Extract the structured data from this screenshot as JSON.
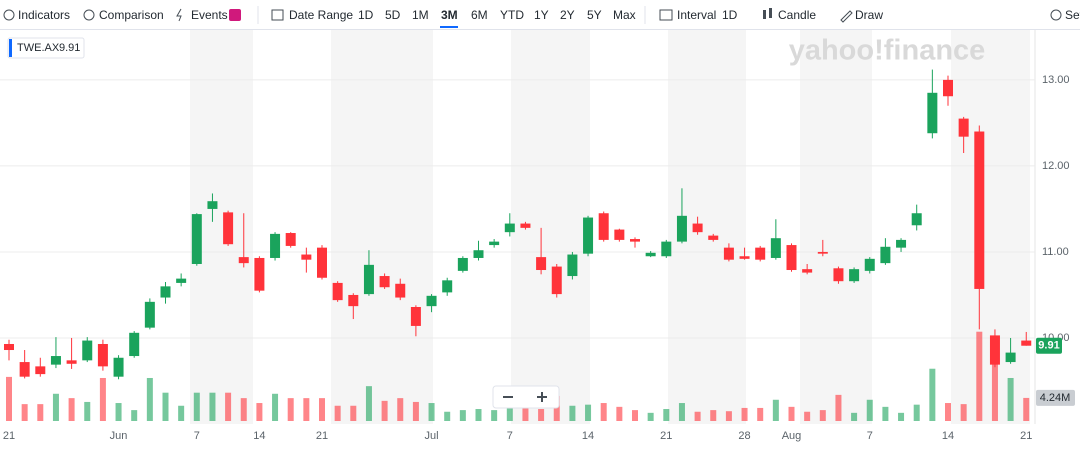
{
  "toolbar": {
    "tools": [
      "Indicators",
      "Comparison",
      "Events"
    ],
    "date_range": "Date Range",
    "ranges": [
      "1D",
      "5D",
      "1M",
      "3M",
      "6M",
      "YTD",
      "1Y",
      "2Y",
      "5Y",
      "Max"
    ],
    "selected_range": 3,
    "interval": "Interval",
    "interval_value": "1D",
    "chart_style": "Candle",
    "draw": "Draw",
    "settings": "Settings"
  },
  "watermark": "yahoo!finance",
  "chart_data": {
    "type": "candlestick",
    "categories": [
      "21",
      null,
      null,
      null,
      null,
      null,
      null,
      "Jun",
      null,
      null,
      null,
      null,
      "7",
      null,
      null,
      null,
      "14",
      null,
      null,
      null,
      "21",
      null,
      null,
      null,
      null,
      null,
      null,
      "Jul",
      null,
      null,
      null,
      null,
      "7",
      null,
      null,
      null,
      null,
      "14",
      null,
      null,
      null,
      null,
      "21",
      null,
      null,
      null,
      null,
      "28",
      null,
      null,
      "Aug",
      null,
      null,
      null,
      null,
      "7",
      null,
      null,
      null,
      null,
      "14",
      null,
      null,
      null,
      null,
      "21"
    ],
    "series": [
      {
        "name": "TWE.AX",
        "up_color": "#1aa35c",
        "down_color": "#ff333a",
        "open": [
          9.93,
          9.72,
          9.67,
          9.69,
          9.74,
          9.74,
          9.93,
          9.55,
          9.79,
          10.12,
          10.47,
          10.64,
          10.86,
          11.5,
          11.46,
          10.94,
          10.93,
          10.93,
          11.22,
          10.97,
          11.05,
          10.64,
          10.5,
          10.51,
          10.72,
          10.63,
          10.36,
          10.37,
          10.53,
          10.78,
          10.93,
          11.08,
          11.23,
          11.33,
          10.94,
          10.83,
          10.72,
          10.98,
          11.45,
          11.26,
          11.15,
          10.95,
          10.95,
          11.12,
          11.33,
          11.19,
          11.05,
          10.95,
          11.05,
          10.93,
          11.08,
          10.8,
          11.0,
          10.81,
          10.66,
          10.78,
          10.87,
          11.05,
          11.31,
          12.38,
          13.0,
          12.55,
          12.4,
          10.03,
          9.72,
          9.97
        ],
        "high": [
          9.98,
          9.86,
          9.77,
          10.01,
          10.0,
          10.01,
          9.98,
          9.8,
          10.08,
          10.46,
          10.65,
          10.75,
          11.45,
          11.68,
          11.48,
          11.45,
          10.95,
          11.23,
          11.23,
          11.05,
          11.08,
          10.66,
          10.52,
          11.02,
          10.75,
          10.69,
          10.38,
          10.51,
          10.7,
          10.95,
          11.13,
          11.15,
          11.45,
          11.35,
          11.28,
          10.86,
          11.0,
          11.42,
          11.47,
          11.27,
          11.17,
          11.01,
          11.14,
          11.74,
          11.41,
          11.21,
          11.1,
          11.05,
          11.07,
          11.38,
          11.1,
          10.86,
          11.14,
          10.83,
          10.82,
          10.94,
          11.16,
          11.16,
          11.55,
          13.12,
          13.05,
          12.57,
          12.47,
          10.1,
          10.0,
          10.07
        ],
        "low": [
          9.74,
          9.53,
          9.55,
          9.65,
          9.64,
          9.72,
          9.62,
          9.52,
          9.77,
          10.1,
          10.4,
          10.6,
          10.84,
          11.35,
          11.07,
          10.82,
          10.53,
          10.9,
          11.05,
          10.76,
          10.68,
          10.42,
          10.22,
          10.49,
          10.57,
          10.44,
          10.02,
          10.3,
          10.49,
          10.76,
          10.9,
          11.05,
          11.18,
          11.26,
          10.74,
          10.47,
          10.68,
          10.95,
          11.12,
          11.12,
          11.05,
          10.94,
          10.93,
          11.1,
          11.2,
          11.12,
          10.89,
          10.91,
          10.89,
          10.91,
          10.77,
          10.74,
          10.95,
          10.63,
          10.64,
          10.75,
          10.85,
          11.0,
          11.25,
          12.32,
          12.7,
          12.15,
          10.1,
          9.66,
          9.7,
          9.91
        ],
        "close": [
          9.86,
          9.55,
          9.58,
          9.79,
          9.7,
          9.97,
          9.67,
          9.77,
          10.06,
          10.42,
          10.6,
          10.69,
          11.44,
          11.59,
          11.09,
          10.87,
          10.55,
          11.21,
          11.07,
          10.91,
          10.7,
          10.44,
          10.37,
          10.85,
          10.59,
          10.47,
          10.14,
          10.49,
          10.67,
          10.93,
          11.02,
          11.12,
          11.33,
          11.28,
          10.79,
          10.51,
          10.97,
          11.4,
          11.14,
          11.14,
          11.12,
          10.99,
          11.12,
          11.42,
          11.23,
          11.14,
          10.91,
          10.92,
          10.91,
          11.16,
          10.79,
          10.76,
          10.98,
          10.66,
          10.8,
          10.92,
          11.06,
          11.14,
          11.45,
          12.85,
          12.81,
          12.34,
          10.57,
          9.69,
          9.83,
          9.91
        ]
      }
    ],
    "volume": {
      "values": [
        8.1,
        3.1,
        3.1,
        5.0,
        4.2,
        3.5,
        7.9,
        3.3,
        2.0,
        7.9,
        5.2,
        2.8,
        5.2,
        5.2,
        5.2,
        4.2,
        3.3,
        5.0,
        4.2,
        4.2,
        4.2,
        2.8,
        2.8,
        6.4,
        3.7,
        4.2,
        3.5,
        3.3,
        1.7,
        2.0,
        2.2,
        2.0,
        4.8,
        4.6,
        2.2,
        4.6,
        2.8,
        3.0,
        3.3,
        2.6,
        2.0,
        1.5,
        2.2,
        3.3,
        1.7,
        2.0,
        1.8,
        2.4,
        2.4,
        3.9,
        2.6,
        1.7,
        2.0,
        4.8,
        1.5,
        3.9,
        2.6,
        1.5,
        3.0,
        9.6,
        3.3,
        3.1,
        16.4,
        14.7,
        7.9,
        4.24
      ],
      "value_labels": [
        null,
        null,
        null,
        null,
        null,
        null,
        null,
        null,
        null,
        null,
        null,
        null,
        null,
        null,
        null,
        null,
        null,
        null,
        null,
        null,
        null,
        null,
        null,
        null,
        null,
        null,
        null,
        null,
        null,
        null,
        null,
        null,
        null,
        null,
        null,
        null,
        null,
        null,
        null,
        null,
        null,
        null,
        null,
        null,
        null,
        null,
        null,
        null,
        null,
        null,
        null,
        null,
        null,
        null,
        null,
        null,
        null,
        null,
        null,
        null,
        null,
        null,
        null,
        null,
        null,
        "4.24M"
      ],
      "ylim": [
        0,
        18
      ]
    },
    "ylim": [
      9.0,
      13.58
    ],
    "yticks": [
      {
        "value": 10,
        "label": "10.00"
      },
      {
        "value": 11,
        "label": "11.00"
      },
      {
        "value": 12,
        "label": "12.00"
      },
      {
        "value": 13,
        "label": "13.00"
      }
    ],
    "grid": true
  }
}
